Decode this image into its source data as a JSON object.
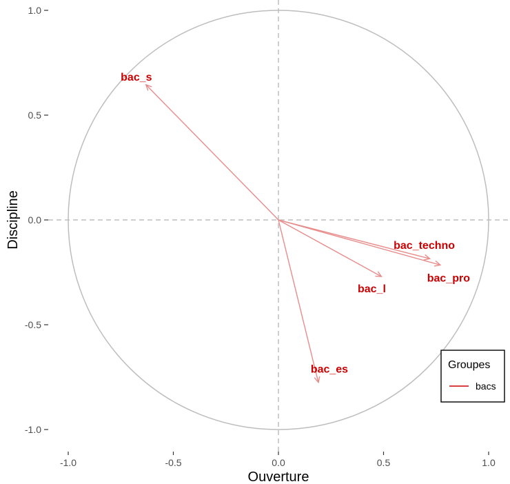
{
  "chart_data": {
    "type": "scatter",
    "xlabel": "Ouverture",
    "ylabel": "Discipline",
    "xlim": [
      -1.0,
      1.0
    ],
    "ylim": [
      -1.0,
      1.0
    ],
    "xticks": [
      -1.0,
      -0.5,
      0.0,
      0.5,
      1.0
    ],
    "yticks": [
      -1.0,
      -0.5,
      0.0,
      0.5,
      1.0
    ],
    "xtick_labels": [
      "-1.0",
      "-0.5",
      "0.0",
      "0.5",
      "1.0"
    ],
    "ytick_labels": [
      "-1.0",
      "-0.5",
      "0.0",
      "0.5",
      "1.0"
    ],
    "grid": false,
    "unit_circle": true,
    "reference_lines": [
      0,
      0
    ],
    "series": [
      {
        "name": "bacs",
        "color": "#cc0000",
        "points": [
          {
            "label": "bac_s",
            "x": -0.63,
            "y": 0.645
          },
          {
            "label": "bac_techno",
            "x": 0.72,
            "y": -0.185
          },
          {
            "label": "bac_pro",
            "x": 0.77,
            "y": -0.215
          },
          {
            "label": "bac_l",
            "x": 0.49,
            "y": -0.27
          },
          {
            "label": "bac_es",
            "x": 0.19,
            "y": -0.775
          }
        ]
      }
    ],
    "legend": {
      "title": "Groupes",
      "placement": "bottom-right",
      "entries": [
        "bacs"
      ]
    }
  }
}
